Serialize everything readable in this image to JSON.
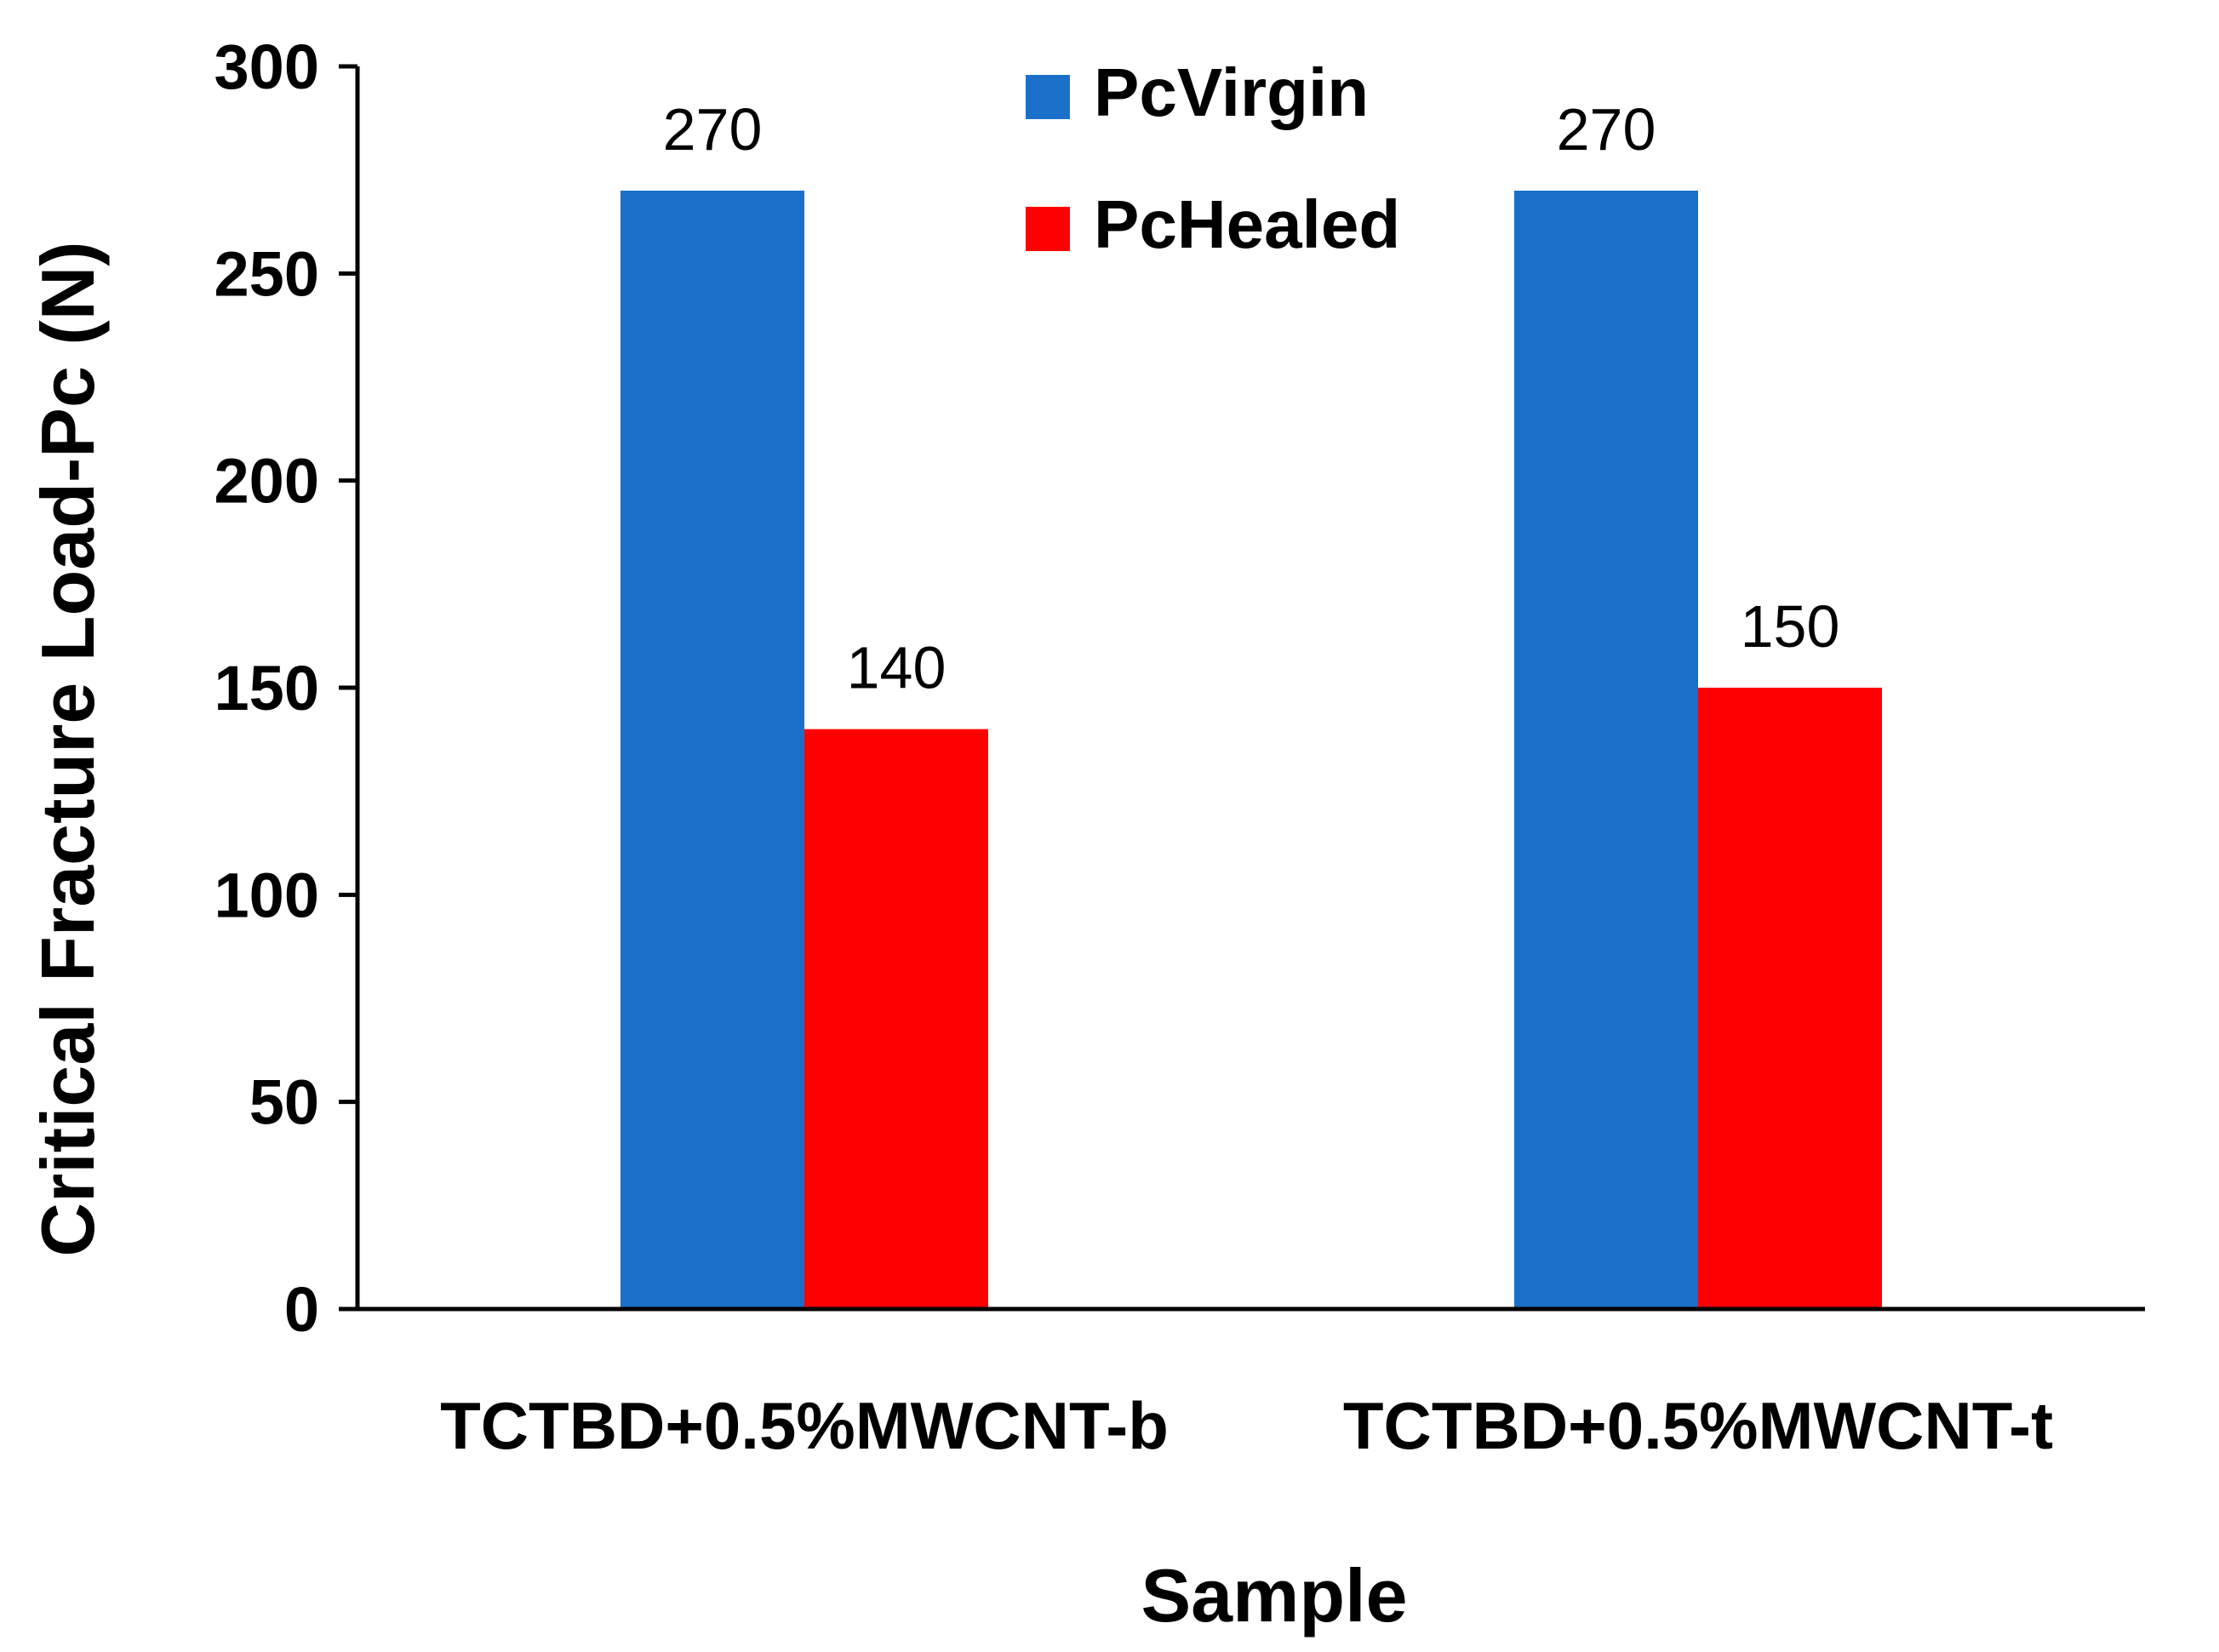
{
  "chart_data": {
    "type": "bar",
    "title": "",
    "xlabel": "Sample",
    "ylabel": "Critical Fracture Load-Pc (N)",
    "ylim": [
      0,
      300
    ],
    "yticks": [
      0,
      50,
      100,
      150,
      200,
      250,
      300
    ],
    "categories": [
      "TCTBD+0.5%MWCNT-b",
      "TCTBD+0.5%MWCNT-t"
    ],
    "series": [
      {
        "name": "PcVirgin",
        "values": [
          270,
          270
        ],
        "color": "#1a70c8"
      },
      {
        "name": "PcHealed",
        "values": [
          140,
          150
        ],
        "color": "#ff0000"
      }
    ],
    "data_labels": true,
    "grid": false,
    "legend": "top-center"
  }
}
